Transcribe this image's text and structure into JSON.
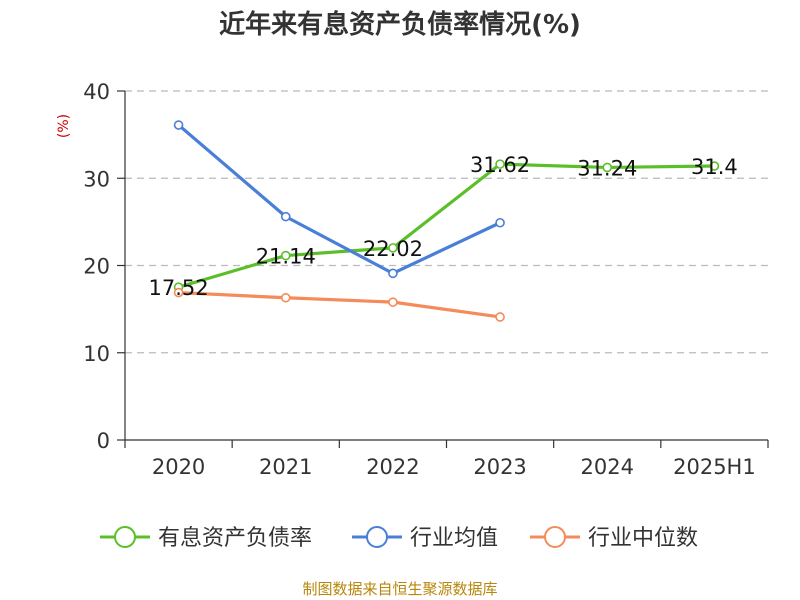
{
  "chart_data": {
    "type": "line",
    "title": "近年来有息资产负债率情况(%)",
    "ylabel": "(%)",
    "xlabel": "",
    "categories": [
      "2020",
      "2021",
      "2022",
      "2023",
      "2024",
      "2025H1"
    ],
    "ylim": [
      0,
      40
    ],
    "yticks": [
      0,
      10,
      20,
      30,
      40
    ],
    "grid": true,
    "legend_position": "bottom",
    "series": [
      {
        "name": "有息资产负债率",
        "color": "#5bbf2a",
        "values": [
          17.52,
          21.14,
          22.02,
          31.62,
          31.24,
          31.4
        ],
        "labels": [
          "17.52",
          "21.14",
          "22.02",
          "31.62",
          "31.24",
          "31.4"
        ]
      },
      {
        "name": "行业均值",
        "color": "#4a7fd8",
        "values": [
          36.1,
          25.6,
          19.1,
          24.9,
          null,
          null
        ]
      },
      {
        "name": "行业中位数",
        "color": "#f48b5a",
        "values": [
          16.9,
          16.3,
          15.8,
          14.1,
          null,
          null
        ]
      }
    ],
    "source": "制图数据来自恒生聚源数据库"
  }
}
